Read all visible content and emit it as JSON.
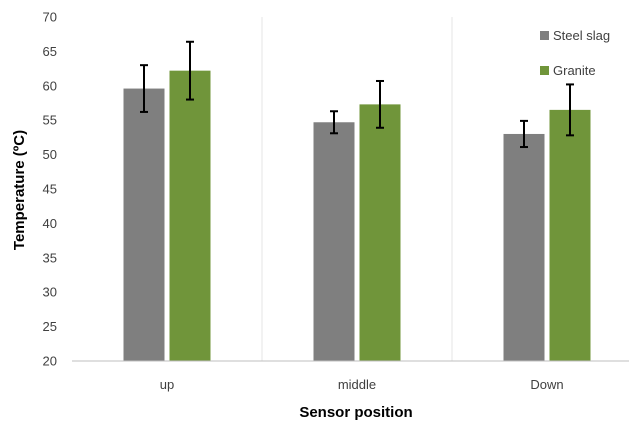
{
  "chart_data": {
    "type": "bar",
    "title": "",
    "xlabel": "Sensor position",
    "ylabel": "Temperature (ºC)",
    "categories": [
      "up",
      "middle",
      "Down"
    ],
    "ylim": [
      20,
      70
    ],
    "yticks": [
      20,
      25,
      30,
      35,
      40,
      45,
      50,
      55,
      60,
      65,
      70
    ],
    "grid": "vertical category separators",
    "legend_position": "top-right",
    "series": [
      {
        "name": "Steel slag",
        "color": "#7f7f7f",
        "values": [
          59.6,
          54.7,
          53.0
        ],
        "error": [
          3.4,
          1.6,
          1.9
        ]
      },
      {
        "name": "Granite",
        "color": "#70953a",
        "values": [
          62.2,
          57.3,
          56.5
        ],
        "error": [
          4.2,
          3.4,
          3.7
        ]
      }
    ]
  }
}
